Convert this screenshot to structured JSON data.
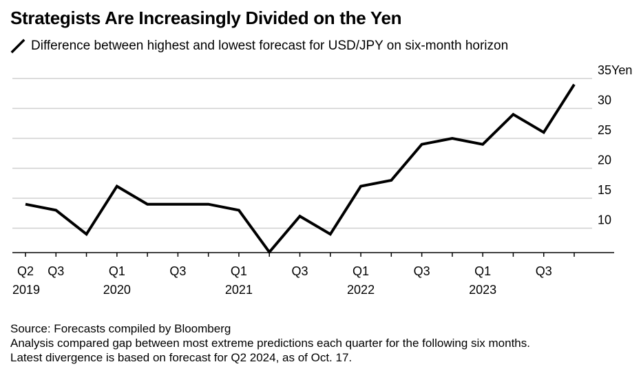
{
  "title": "Strategists Are Increasingly Divided on the Yen",
  "subtitle": "Difference between highest and lowest forecast for USD/JPY on six-month horizon",
  "footer": {
    "source": "Source: Forecasts compiled by Bloomberg",
    "note1": "Analysis compared gap between most extreme predictions each quarter for the following six months.",
    "note2": "Latest divergence is based on forecast for Q2 2024, as of Oct. 17."
  },
  "colors": {
    "line": "#000000",
    "grid": "#d0d0d0",
    "axis": "#000000"
  },
  "chart_data": {
    "type": "line",
    "series": [
      {
        "values": [
          14,
          13,
          9,
          17,
          14,
          14,
          14,
          13,
          6,
          12,
          9,
          17,
          18,
          24,
          25,
          24,
          29,
          26,
          34
        ]
      }
    ],
    "x": [
      "Q2 2019",
      "Q3 2019",
      "Q4 2019",
      "Q1 2020",
      "Q2 2020",
      "Q3 2020",
      "Q4 2020",
      "Q1 2021",
      "Q2 2021",
      "Q3 2021",
      "Q4 2021",
      "Q1 2022",
      "Q2 2022",
      "Q3 2022",
      "Q4 2022",
      "Q1 2023",
      "Q2 2023",
      "Q3 2023",
      "Q4 2023"
    ],
    "x_tick_labels": [
      {
        "index": 0,
        "quarter": "Q2",
        "year": "2019"
      },
      {
        "index": 1,
        "quarter": "Q3",
        "year": ""
      },
      {
        "index": 3,
        "quarter": "Q1",
        "year": "2020"
      },
      {
        "index": 5,
        "quarter": "Q3",
        "year": ""
      },
      {
        "index": 7,
        "quarter": "Q1",
        "year": "2021"
      },
      {
        "index": 9,
        "quarter": "Q3",
        "year": ""
      },
      {
        "index": 11,
        "quarter": "Q1",
        "year": "2022"
      },
      {
        "index": 13,
        "quarter": "Q3",
        "year": ""
      },
      {
        "index": 15,
        "quarter": "Q1",
        "year": "2023"
      },
      {
        "index": 17,
        "quarter": "Q3",
        "year": ""
      }
    ],
    "y_ticks": [
      10,
      15,
      20,
      25,
      30,
      35
    ],
    "y_unit": "Yen",
    "ylim": [
      5,
      35
    ],
    "grid": true,
    "y_axis_position": "right"
  }
}
